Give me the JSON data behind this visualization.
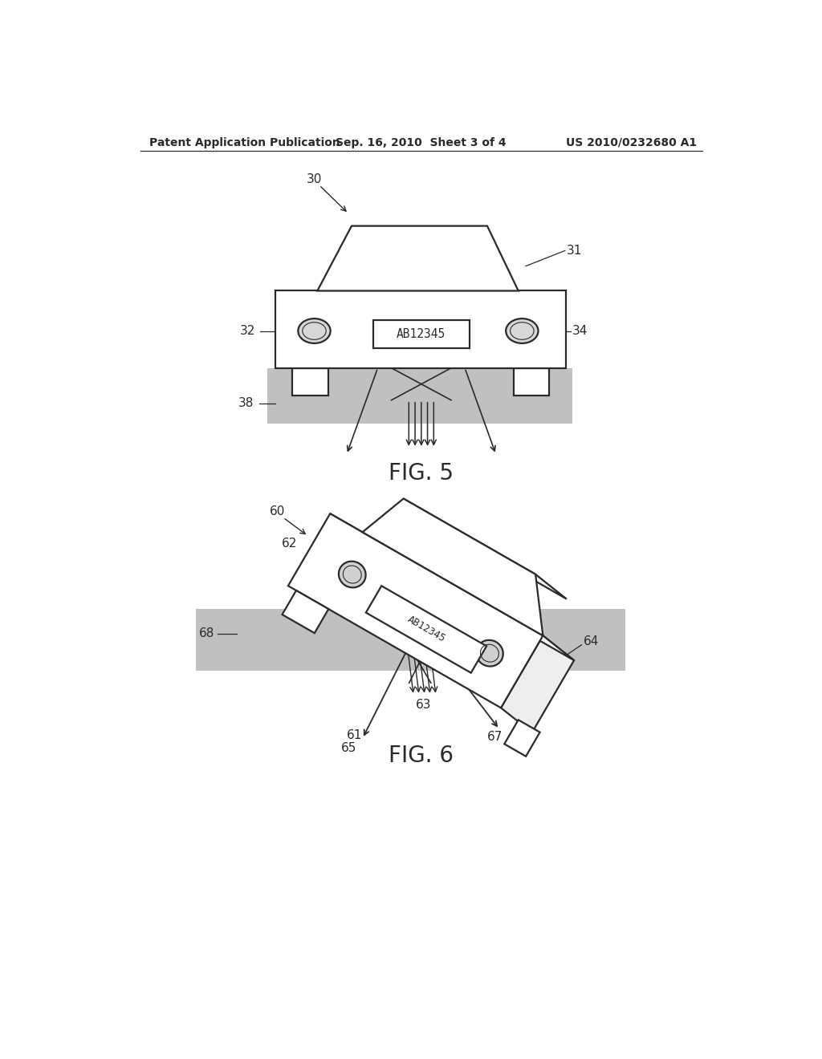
{
  "background_color": "#ffffff",
  "header_left": "Patent Application Publication",
  "header_center": "Sep. 16, 2010  Sheet 3 of 4",
  "header_right": "US 2010/0232680 A1",
  "fig5_label": "FIG. 5",
  "fig6_label": "FIG. 6",
  "line_color": "#2a2a2a",
  "shading_color": "#c0c0c0",
  "label_fontsize": 11,
  "header_fontsize": 10,
  "fig_label_fontsize": 20
}
